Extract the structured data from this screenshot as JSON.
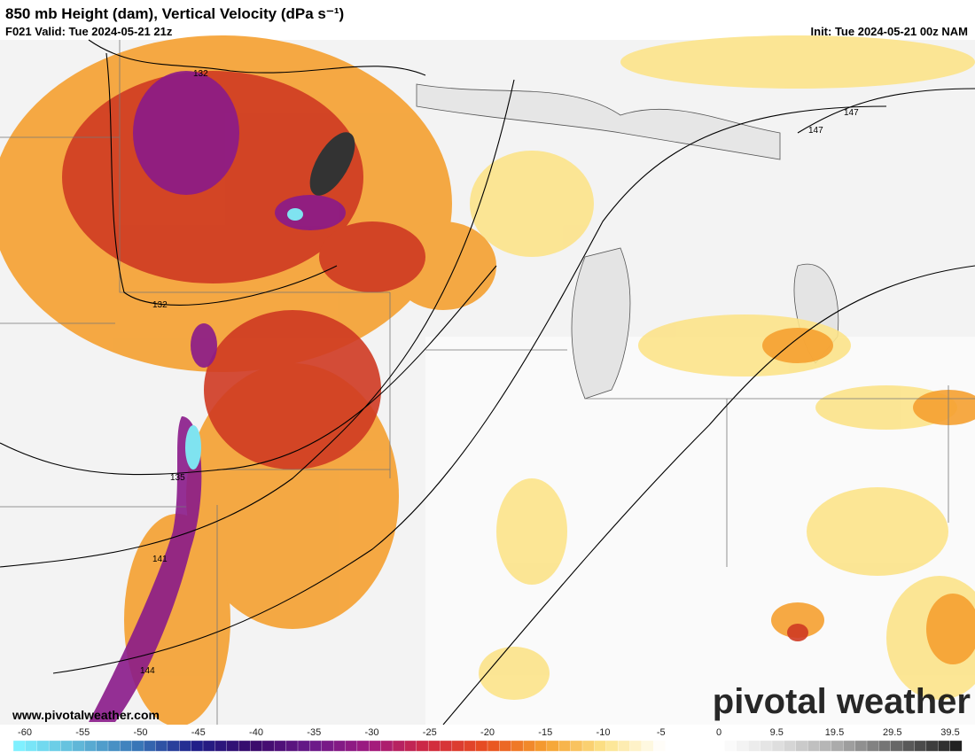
{
  "header": {
    "title": "850 mb Height (dam), Vertical Velocity (dPa s⁻¹)",
    "valid": "F021 Valid: Tue 2024-05-21 21z",
    "init": "Init: Tue 2024-05-21 00z NAM"
  },
  "contour_labels": [
    "132",
    "132",
    "135",
    "141",
    "144",
    "147",
    "147"
  ],
  "colorbar": {
    "ticks": [
      "-60",
      "-55",
      "-50",
      "-45",
      "-40",
      "-35",
      "-30",
      "-25",
      "-20",
      "-15",
      "-10",
      "-5",
      "0",
      "9.5",
      "19.5",
      "29.5",
      "39.5"
    ]
  },
  "footer": {
    "website": "www.pivotalweather.com",
    "watermark": "pivotal weather"
  }
}
